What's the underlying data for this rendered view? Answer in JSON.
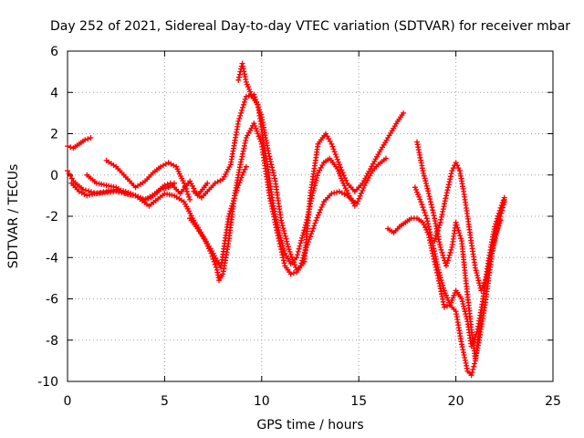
{
  "chart_data": {
    "type": "scatter",
    "title": "Day 252 of 2021, Sidereal Day-to-day VTEC variation (SDTVAR) for receiver mbar",
    "xlabel": "GPS time / hours",
    "ylabel": "SDTVAR / TECUs",
    "xlim": [
      0,
      25
    ],
    "ylim": [
      -10,
      6
    ],
    "xticks": [
      0,
      5,
      10,
      15,
      20,
      25
    ],
    "yticks": [
      -10,
      -8,
      -6,
      -4,
      -2,
      0,
      2,
      4,
      6
    ],
    "grid": true,
    "legend": "none",
    "marker": "plus",
    "color": "#ff0000",
    "series": [
      {
        "x": [
          0,
          0.3,
          0.6,
          0.9,
          1.2
        ],
        "y": [
          1.4,
          1.3,
          1.5,
          1.7,
          1.8
        ]
      },
      {
        "x": [
          0,
          0.3,
          0.8,
          1.5,
          2.5,
          3.5,
          4.2,
          5.0,
          5.5,
          6.0,
          6.5,
          7.0,
          7.5,
          7.9,
          8.3,
          8.8,
          9.0,
          9.2
        ],
        "y": [
          0.2,
          -0.3,
          -0.7,
          -0.9,
          -0.8,
          -1.0,
          -1.5,
          -0.9,
          -1.0,
          -1.3,
          -2.2,
          -3.0,
          -3.8,
          -4.5,
          -2.0,
          -0.5,
          0,
          0.4
        ]
      },
      {
        "x": [
          1.0,
          1.5,
          2.0,
          2.5,
          3.0,
          3.5,
          4.0,
          4.5,
          5.0,
          5.3,
          5.8,
          6.3,
          6.7,
          7.2
        ],
        "y": [
          0.0,
          -0.4,
          -0.5,
          -0.6,
          -0.9,
          -1.0,
          -1.2,
          -0.9,
          -0.5,
          -0.4,
          -0.9,
          -0.3,
          -1.0,
          -0.4
        ]
      },
      {
        "x": [
          0.2,
          0.6,
          1.0,
          1.4,
          2.0,
          2.5,
          3.0,
          3.5,
          3.9,
          4.3,
          4.8,
          5.2,
          5.5
        ],
        "y": [
          -0.4,
          -0.8,
          -1.0,
          -0.9,
          -0.8,
          -0.7,
          -0.8,
          -1.0,
          -1.2,
          -1.1,
          -0.7,
          -0.6,
          -0.4
        ]
      },
      {
        "x": [
          2.0,
          2.5,
          3.0,
          3.5,
          4.0,
          4.4,
          4.8,
          5.2,
          5.6,
          6.0,
          6.3
        ],
        "y": [
          0.7,
          0.4,
          -0.1,
          -0.6,
          -0.3,
          0.1,
          0.4,
          0.6,
          0.4,
          -0.4,
          -1.2
        ]
      },
      {
        "x": [
          6.3,
          6.7,
          7.1,
          7.4,
          7.7,
          7.8,
          8.0,
          8.3,
          8.6,
          8.9,
          9.2,
          9.6,
          10.0,
          10.4,
          10.8,
          11.2,
          11.5,
          11.8,
          12.2,
          12.5,
          12.9,
          13.3,
          13.6,
          14.0,
          14.4,
          14.8,
          15.2,
          15.6,
          16.0,
          16.5,
          17.0,
          17.3
        ],
        "y": [
          -2.1,
          -2.6,
          -3.2,
          -3.8,
          -4.6,
          -5.1,
          -4.8,
          -3.2,
          -1.0,
          0.5,
          1.8,
          2.5,
          1.5,
          -1.0,
          -2.8,
          -4.4,
          -4.8,
          -4.7,
          -4.2,
          -1.0,
          1.5,
          2.0,
          1.5,
          0.5,
          -0.4,
          -0.8,
          -0.4,
          0.3,
          1.0,
          1.8,
          2.6,
          3.0
        ]
      },
      {
        "x": [
          6.5,
          6.9,
          7.2,
          7.6,
          8.0,
          8.4,
          8.8,
          9.2,
          9.6,
          10.0,
          10.3,
          10.7,
          11.0,
          11.4,
          11.8,
          12.0,
          12.3,
          12.8,
          13.2,
          13.6,
          14.0,
          14.4,
          14.9,
          15.3,
          15.7,
          16.0,
          16.4
        ],
        "y": [
          -0.8,
          -1.1,
          -0.8,
          -0.4,
          -0.2,
          0.5,
          2.6,
          3.8,
          3.9,
          2.8,
          1.3,
          -0.3,
          -2.2,
          -3.6,
          -4.6,
          -4.4,
          -3.5,
          -2.2,
          -1.3,
          -0.9,
          -0.8,
          -1.0,
          -1.4,
          -0.5,
          0.2,
          0.5,
          0.8
        ]
      },
      {
        "x": [
          8.8,
          9.0,
          9.2,
          9.5,
          9.8,
          10.0,
          10.3,
          10.6,
          10.9,
          11.2,
          11.5,
          11.8,
          12.0,
          12.3,
          12.6,
          12.9,
          13.2,
          13.5,
          13.9,
          14.2,
          14.5,
          14.8
        ],
        "y": [
          4.6,
          5.4,
          4.5,
          3.8,
          3.4,
          2.2,
          0.4,
          -1.5,
          -2.8,
          -3.8,
          -4.3,
          -4.0,
          -3.3,
          -2.3,
          -1.0,
          0.1,
          0.6,
          0.8,
          0.3,
          -0.4,
          -1.0,
          -1.5
        ]
      },
      {
        "x": [
          16.5,
          16.8,
          17.1,
          17.4,
          17.7,
          18.0,
          18.3,
          18.6,
          18.8,
          19.1,
          19.4,
          19.7,
          20.0,
          20.3,
          20.6,
          20.8,
          21.1,
          21.4,
          21.7,
          22.0,
          22.3,
          22.5
        ],
        "y": [
          -2.6,
          -2.8,
          -2.5,
          -2.3,
          -2.1,
          -2.1,
          -2.3,
          -2.9,
          -3.8,
          -5.0,
          -6.4,
          -6.3,
          -5.6,
          -6.0,
          -7.1,
          -8.3,
          -7.6,
          -6.0,
          -4.3,
          -3.2,
          -2.0,
          -1.3
        ]
      },
      {
        "x": [
          17.9,
          18.2,
          18.5,
          18.8,
          19.1,
          19.4,
          19.7,
          20.0,
          20.3,
          20.6,
          20.8,
          21.0,
          21.2,
          21.5,
          21.8,
          22.0,
          22.3,
          22.5
        ],
        "y": [
          -0.6,
          -1.3,
          -2.1,
          -3.3,
          -4.6,
          -5.6,
          -6.3,
          -6.6,
          -8.2,
          -9.5,
          -9.7,
          -9.0,
          -7.6,
          -5.2,
          -3.5,
          -2.5,
          -1.6,
          -1.1
        ]
      },
      {
        "x": [
          18.0,
          18.3,
          18.6,
          18.9,
          19.2,
          19.5,
          19.8,
          20.0,
          20.3,
          20.5,
          20.8,
          21.0,
          21.2,
          21.5,
          21.8,
          22.0,
          22.3
        ],
        "y": [
          1.6,
          0.2,
          -0.9,
          -2.1,
          -3.5,
          -4.4,
          -3.5,
          -2.3,
          -3.2,
          -5.0,
          -7.5,
          -8.9,
          -8.0,
          -6.3,
          -4.2,
          -3.0,
          -2.2
        ]
      },
      {
        "x": [
          18.9,
          19.2,
          19.5,
          19.8,
          20.0,
          20.2,
          20.4,
          20.6,
          20.8,
          21.0,
          21.3,
          21.6,
          21.9,
          22.2,
          22.5
        ],
        "y": [
          -3.2,
          -2.3,
          -1.0,
          0.2,
          0.6,
          0.2,
          -0.8,
          -2.0,
          -3.3,
          -4.5,
          -5.6,
          -5.0,
          -3.4,
          -2.0,
          -1.2
        ]
      }
    ]
  }
}
